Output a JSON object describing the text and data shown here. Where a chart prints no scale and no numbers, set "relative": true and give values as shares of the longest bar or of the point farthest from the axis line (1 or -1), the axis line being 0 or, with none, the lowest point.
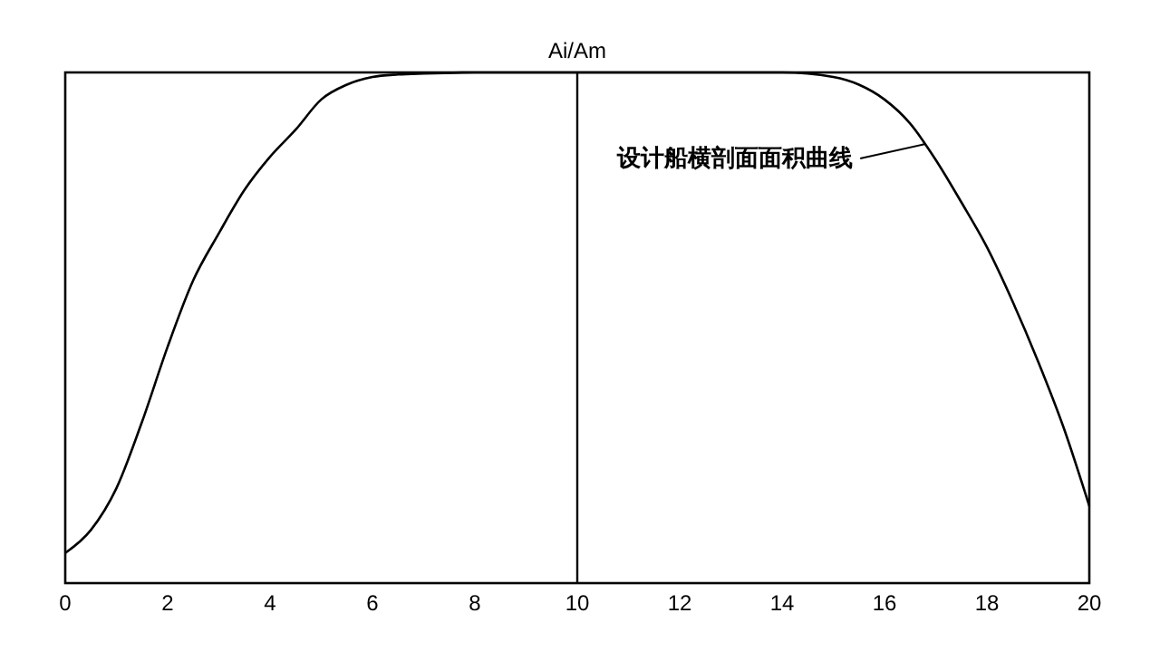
{
  "chart_data": {
    "type": "line",
    "title": "Ai/Am",
    "relative": true,
    "xlim": [
      0,
      20
    ],
    "xticks": [
      0,
      2,
      4,
      6,
      8,
      10,
      12,
      14,
      16,
      18,
      20
    ],
    "x": [
      0,
      0.5,
      1,
      1.5,
      2,
      2.5,
      3,
      3.5,
      4,
      4.5,
      5,
      5.5,
      6,
      6.5,
      7,
      8,
      9,
      10,
      11,
      12,
      13,
      14,
      15,
      15.5,
      16,
      16.5,
      17,
      17.5,
      18,
      18.5,
      19,
      19.5,
      20
    ],
    "series": [
      {
        "color": "#000000",
        "values": [
          0.059,
          0.104,
          0.186,
          0.316,
          0.463,
          0.593,
          0.685,
          0.77,
          0.835,
          0.888,
          0.947,
          0.976,
          0.991,
          0.996,
          0.998,
          1,
          1,
          1,
          1,
          1,
          1,
          1,
          0.991,
          0.976,
          0.947,
          0.9,
          0.829,
          0.746,
          0.658,
          0.552,
          0.434,
          0.304,
          0.151
        ]
      }
    ],
    "ref_lines": [
      {
        "axis": "x",
        "value": 10,
        "color": "#000000"
      }
    ],
    "annotations": [
      {
        "text": "设计船横剖面面积曲线",
        "x": 16.8,
        "y": 0.86
      }
    ],
    "grid": false,
    "marker": "none",
    "line_style": "solid"
  }
}
